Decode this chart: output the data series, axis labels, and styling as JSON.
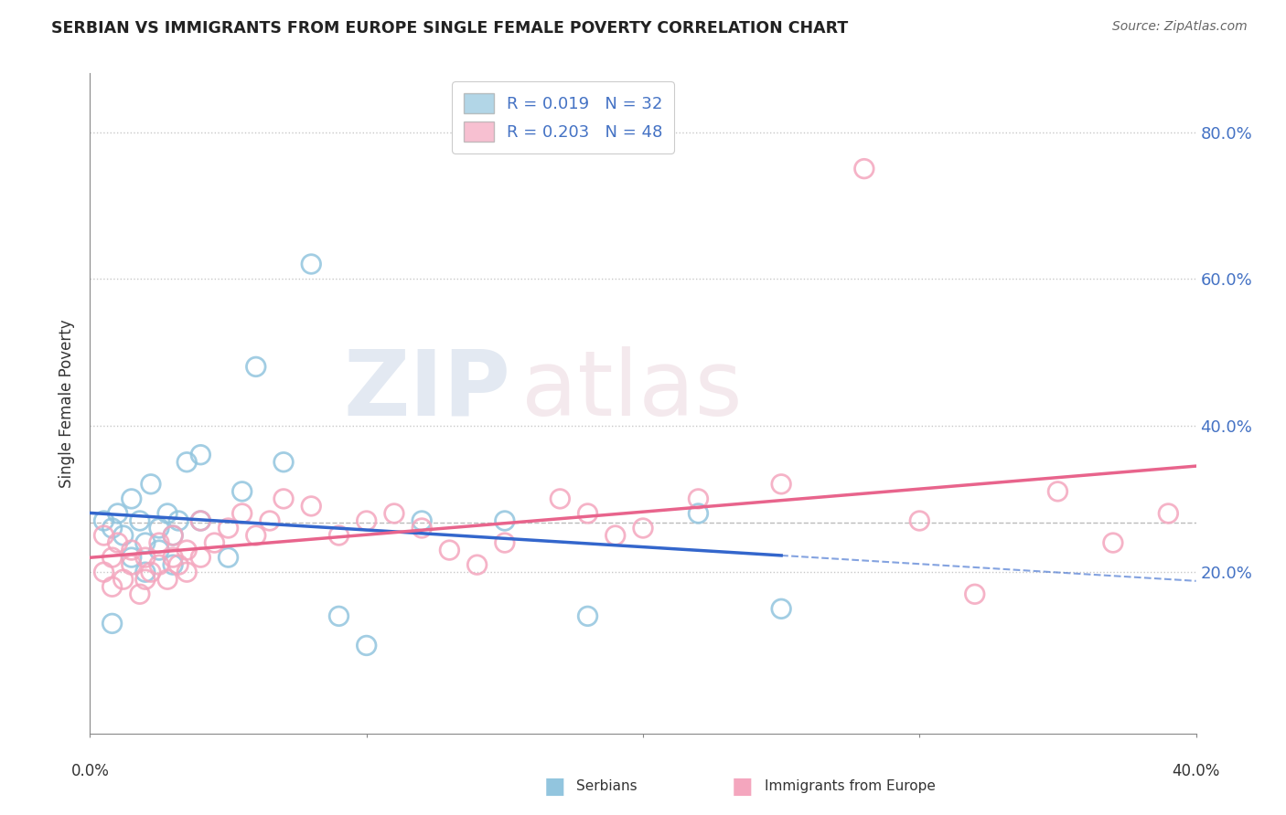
{
  "title": "SERBIAN VS IMMIGRANTS FROM EUROPE SINGLE FEMALE POVERTY CORRELATION CHART",
  "source": "Source: ZipAtlas.com",
  "ylabel": "Single Female Poverty",
  "xlim": [
    0.0,
    0.4
  ],
  "ylim": [
    -0.02,
    0.88
  ],
  "legend_serbian_r": "R = 0.019",
  "legend_serbian_n": "N = 32",
  "legend_immigrant_r": "R = 0.203",
  "legend_immigrant_n": "N = 48",
  "serbian_color": "#92c5de",
  "immigrant_color": "#f4a6be",
  "serbian_line_color": "#3366cc",
  "immigrant_line_color": "#e8648c",
  "background_color": "#ffffff",
  "grid_color": "#c8c8c8",
  "serbians_x": [
    0.005,
    0.008,
    0.01,
    0.012,
    0.015,
    0.015,
    0.018,
    0.02,
    0.02,
    0.022,
    0.025,
    0.025,
    0.028,
    0.03,
    0.03,
    0.032,
    0.035,
    0.04,
    0.04,
    0.05,
    0.055,
    0.06,
    0.07,
    0.08,
    0.09,
    0.1,
    0.12,
    0.15,
    0.18,
    0.22,
    0.25,
    0.008
  ],
  "serbians_y": [
    0.27,
    0.26,
    0.28,
    0.25,
    0.22,
    0.3,
    0.27,
    0.2,
    0.24,
    0.32,
    0.23,
    0.26,
    0.28,
    0.25,
    0.21,
    0.27,
    0.35,
    0.36,
    0.27,
    0.22,
    0.31,
    0.48,
    0.35,
    0.62,
    0.14,
    0.1,
    0.27,
    0.27,
    0.14,
    0.28,
    0.15,
    0.13
  ],
  "immigrants_x": [
    0.005,
    0.005,
    0.008,
    0.008,
    0.01,
    0.012,
    0.015,
    0.015,
    0.018,
    0.02,
    0.02,
    0.022,
    0.025,
    0.025,
    0.028,
    0.03,
    0.03,
    0.032,
    0.035,
    0.035,
    0.04,
    0.04,
    0.045,
    0.05,
    0.055,
    0.06,
    0.065,
    0.07,
    0.08,
    0.09,
    0.1,
    0.11,
    0.12,
    0.13,
    0.14,
    0.15,
    0.17,
    0.18,
    0.19,
    0.2,
    0.22,
    0.25,
    0.28,
    0.3,
    0.32,
    0.35,
    0.37,
    0.39
  ],
  "immigrants_y": [
    0.25,
    0.2,
    0.22,
    0.18,
    0.24,
    0.19,
    0.21,
    0.23,
    0.17,
    0.19,
    0.22,
    0.2,
    0.21,
    0.24,
    0.19,
    0.22,
    0.25,
    0.21,
    0.2,
    0.23,
    0.22,
    0.27,
    0.24,
    0.26,
    0.28,
    0.25,
    0.27,
    0.3,
    0.29,
    0.25,
    0.27,
    0.28,
    0.26,
    0.23,
    0.21,
    0.24,
    0.3,
    0.28,
    0.25,
    0.26,
    0.3,
    0.32,
    0.75,
    0.27,
    0.17,
    0.31,
    0.24,
    0.28
  ]
}
